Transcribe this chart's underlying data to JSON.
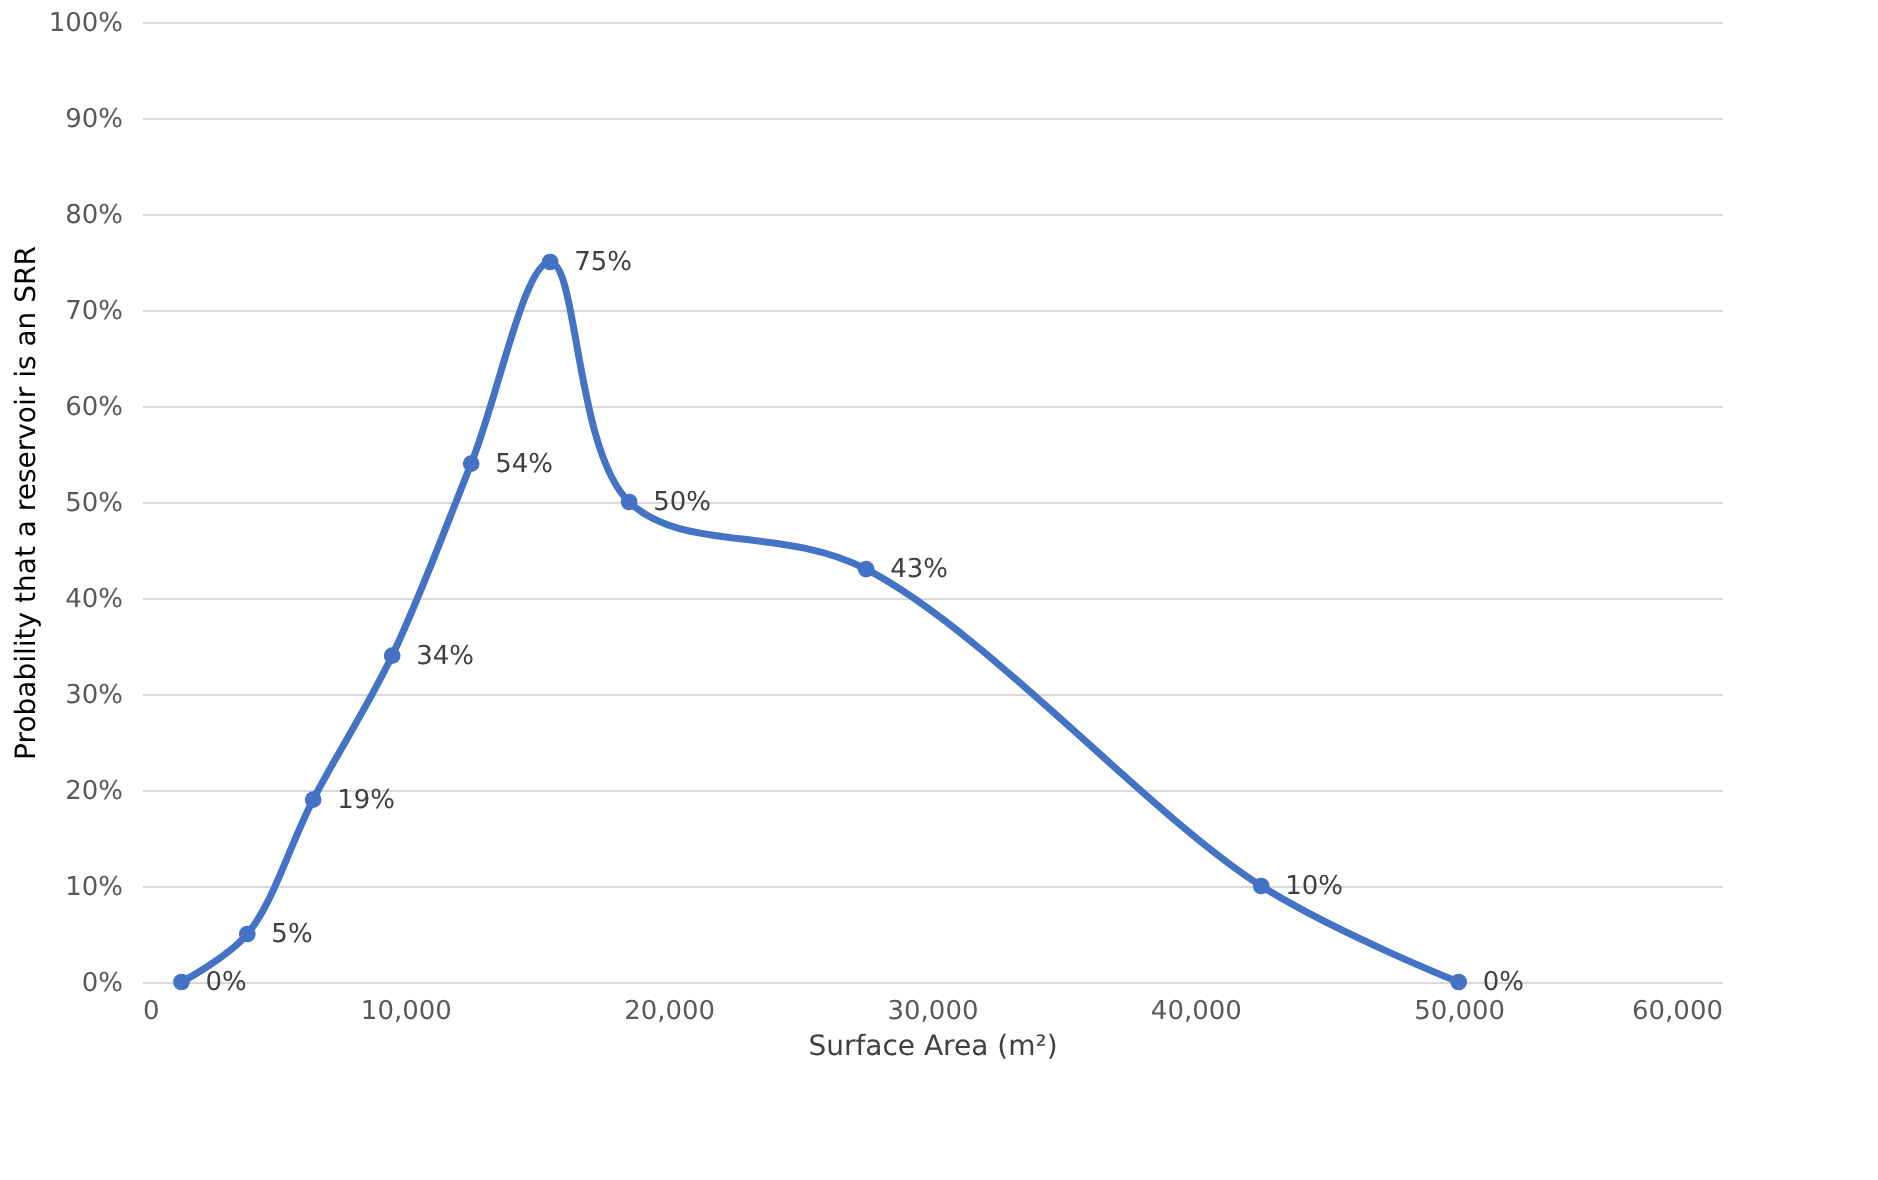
{
  "chart_data": {
    "type": "line",
    "xlabel": "Surface Area (m²)",
    "ylabel": "Probability that a reservoir is an SRR",
    "x": [
      1500,
      4000,
      6500,
      9500,
      12500,
      15500,
      18500,
      27500,
      42500,
      50000
    ],
    "series": [
      {
        "color": "#4472c4",
        "values": [
          0,
          5,
          19,
          34,
          54,
          75,
          50,
          43,
          10,
          0
        ],
        "value_labels": [
          "0%",
          "5%",
          "19%",
          "34%",
          "54%",
          "75%",
          "50%",
          "43%",
          "10%",
          "0%"
        ]
      }
    ],
    "xlim": [
      0,
      60000
    ],
    "xticks": [
      {
        "value": 0,
        "label": "0"
      },
      {
        "value": 10000,
        "label": "10,000"
      },
      {
        "value": 20000,
        "label": "20,000"
      },
      {
        "value": 30000,
        "label": "30,000"
      },
      {
        "value": 40000,
        "label": "40,000"
      },
      {
        "value": 50000,
        "label": "50,000"
      },
      {
        "value": 60000,
        "label": "60,000"
      }
    ],
    "ylim": [
      0,
      100
    ],
    "yticks": [
      {
        "value": 0,
        "label": "0%"
      },
      {
        "value": 10,
        "label": "10%"
      },
      {
        "value": 20,
        "label": "20%"
      },
      {
        "value": 30,
        "label": "30%"
      },
      {
        "value": 40,
        "label": "40%"
      },
      {
        "value": 50,
        "label": "50%"
      },
      {
        "value": 60,
        "label": "60%"
      },
      {
        "value": 70,
        "label": "70%"
      },
      {
        "value": 80,
        "label": "80%"
      },
      {
        "value": 90,
        "label": "90%"
      },
      {
        "value": 100,
        "label": "100%"
      }
    ],
    "grid": "y",
    "marker": "circle",
    "line_style": "solid"
  }
}
